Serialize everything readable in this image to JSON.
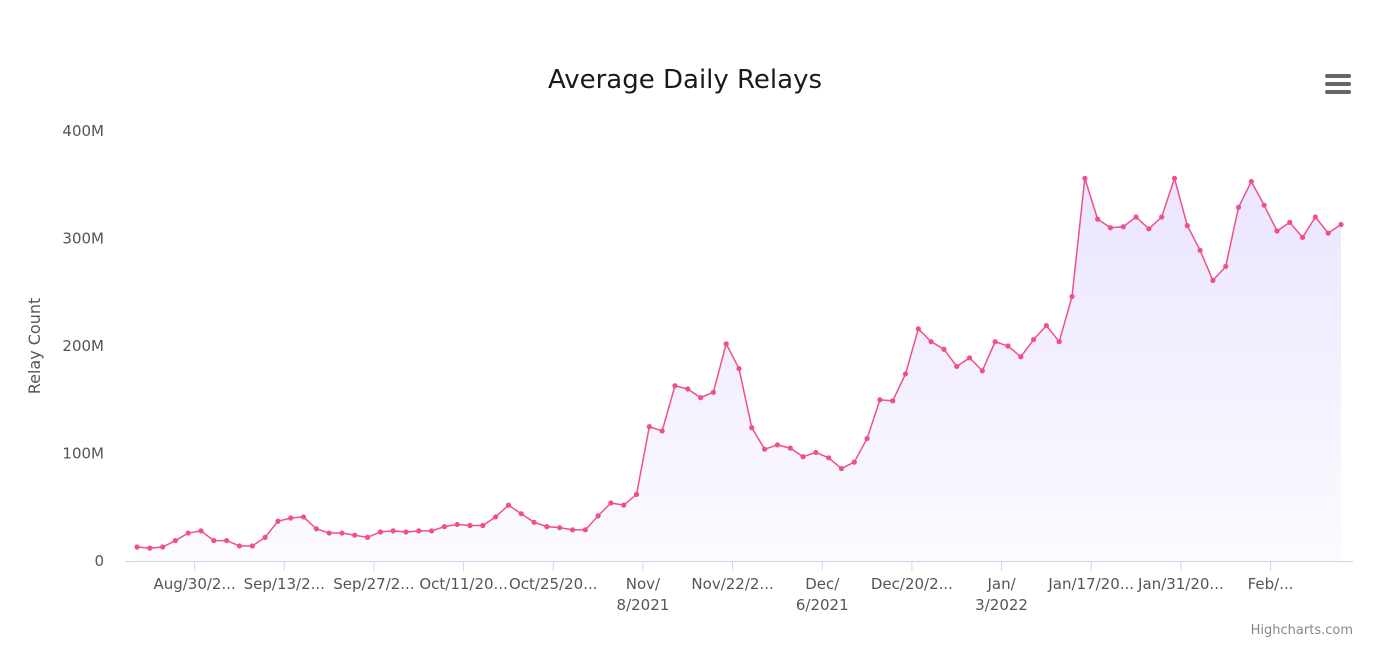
{
  "chart_data": {
    "type": "area",
    "title": "Average Daily Relays",
    "ylabel": "Relay Count",
    "xlabel": "",
    "ylim": [
      0,
      400000000
    ],
    "yticks": [
      0,
      100000000,
      200000000,
      300000000,
      400000000
    ],
    "ytick_labels": [
      "0",
      "100M",
      "200M",
      "300M",
      "400M"
    ],
    "xticks": [
      {
        "lines": [
          "Aug/30/2..."
        ]
      },
      {
        "lines": [
          "Sep/13/2..."
        ]
      },
      {
        "lines": [
          "Sep/27/2..."
        ]
      },
      {
        "lines": [
          "Oct/11/20..."
        ]
      },
      {
        "lines": [
          "Oct/25/20..."
        ]
      },
      {
        "lines": [
          "Nov/",
          "8/2021"
        ]
      },
      {
        "lines": [
          "Nov/22/2..."
        ]
      },
      {
        "lines": [
          "Dec/",
          "6/2021"
        ]
      },
      {
        "lines": [
          "Dec/20/2..."
        ]
      },
      {
        "lines": [
          "Jan/",
          "3/2022"
        ]
      },
      {
        "lines": [
          "Jan/17/20..."
        ]
      },
      {
        "lines": [
          "Jan/31/20..."
        ]
      },
      {
        "lines": [
          "Feb/..."
        ]
      }
    ],
    "tick_spacing_days": 7,
    "first_tick_after_days": 4.5,
    "legend": "none",
    "grid": false,
    "series": [
      {
        "line_color": "#f0508a",
        "fill_color": "#e8e0ff",
        "values": [
          13000000,
          12000000,
          13000000,
          19000000,
          26000000,
          28000000,
          19000000,
          19000000,
          14000000,
          14000000,
          22000000,
          37000000,
          40000000,
          41000000,
          30000000,
          26000000,
          26000000,
          24000000,
          22000000,
          27000000,
          28000000,
          27000000,
          28000000,
          28000000,
          32000000,
          34000000,
          33000000,
          33000000,
          41000000,
          52000000,
          44000000,
          36000000,
          32000000,
          31000000,
          29000000,
          29000000,
          42000000,
          54000000,
          52000000,
          62000000,
          125000000,
          121000000,
          163000000,
          160000000,
          152000000,
          157000000,
          202000000,
          179000000,
          124000000,
          104000000,
          108000000,
          105000000,
          97000000,
          101000000,
          96000000,
          86000000,
          92000000,
          114000000,
          150000000,
          149000000,
          174000000,
          216000000,
          204000000,
          197000000,
          181000000,
          189000000,
          177000000,
          204000000,
          200000000,
          190000000,
          206000000,
          219000000,
          204000000,
          246000000,
          356000000,
          318000000,
          310000000,
          311000000,
          320000000,
          309000000,
          320000000,
          356000000,
          312000000,
          289000000,
          261000000,
          274000000,
          329000000,
          353000000,
          331000000,
          307000000,
          315000000,
          301000000,
          320000000,
          305000000,
          313000000
        ]
      }
    ]
  },
  "credits": "Highcharts.com",
  "menu": {
    "icon": "hamburger-menu-icon"
  }
}
